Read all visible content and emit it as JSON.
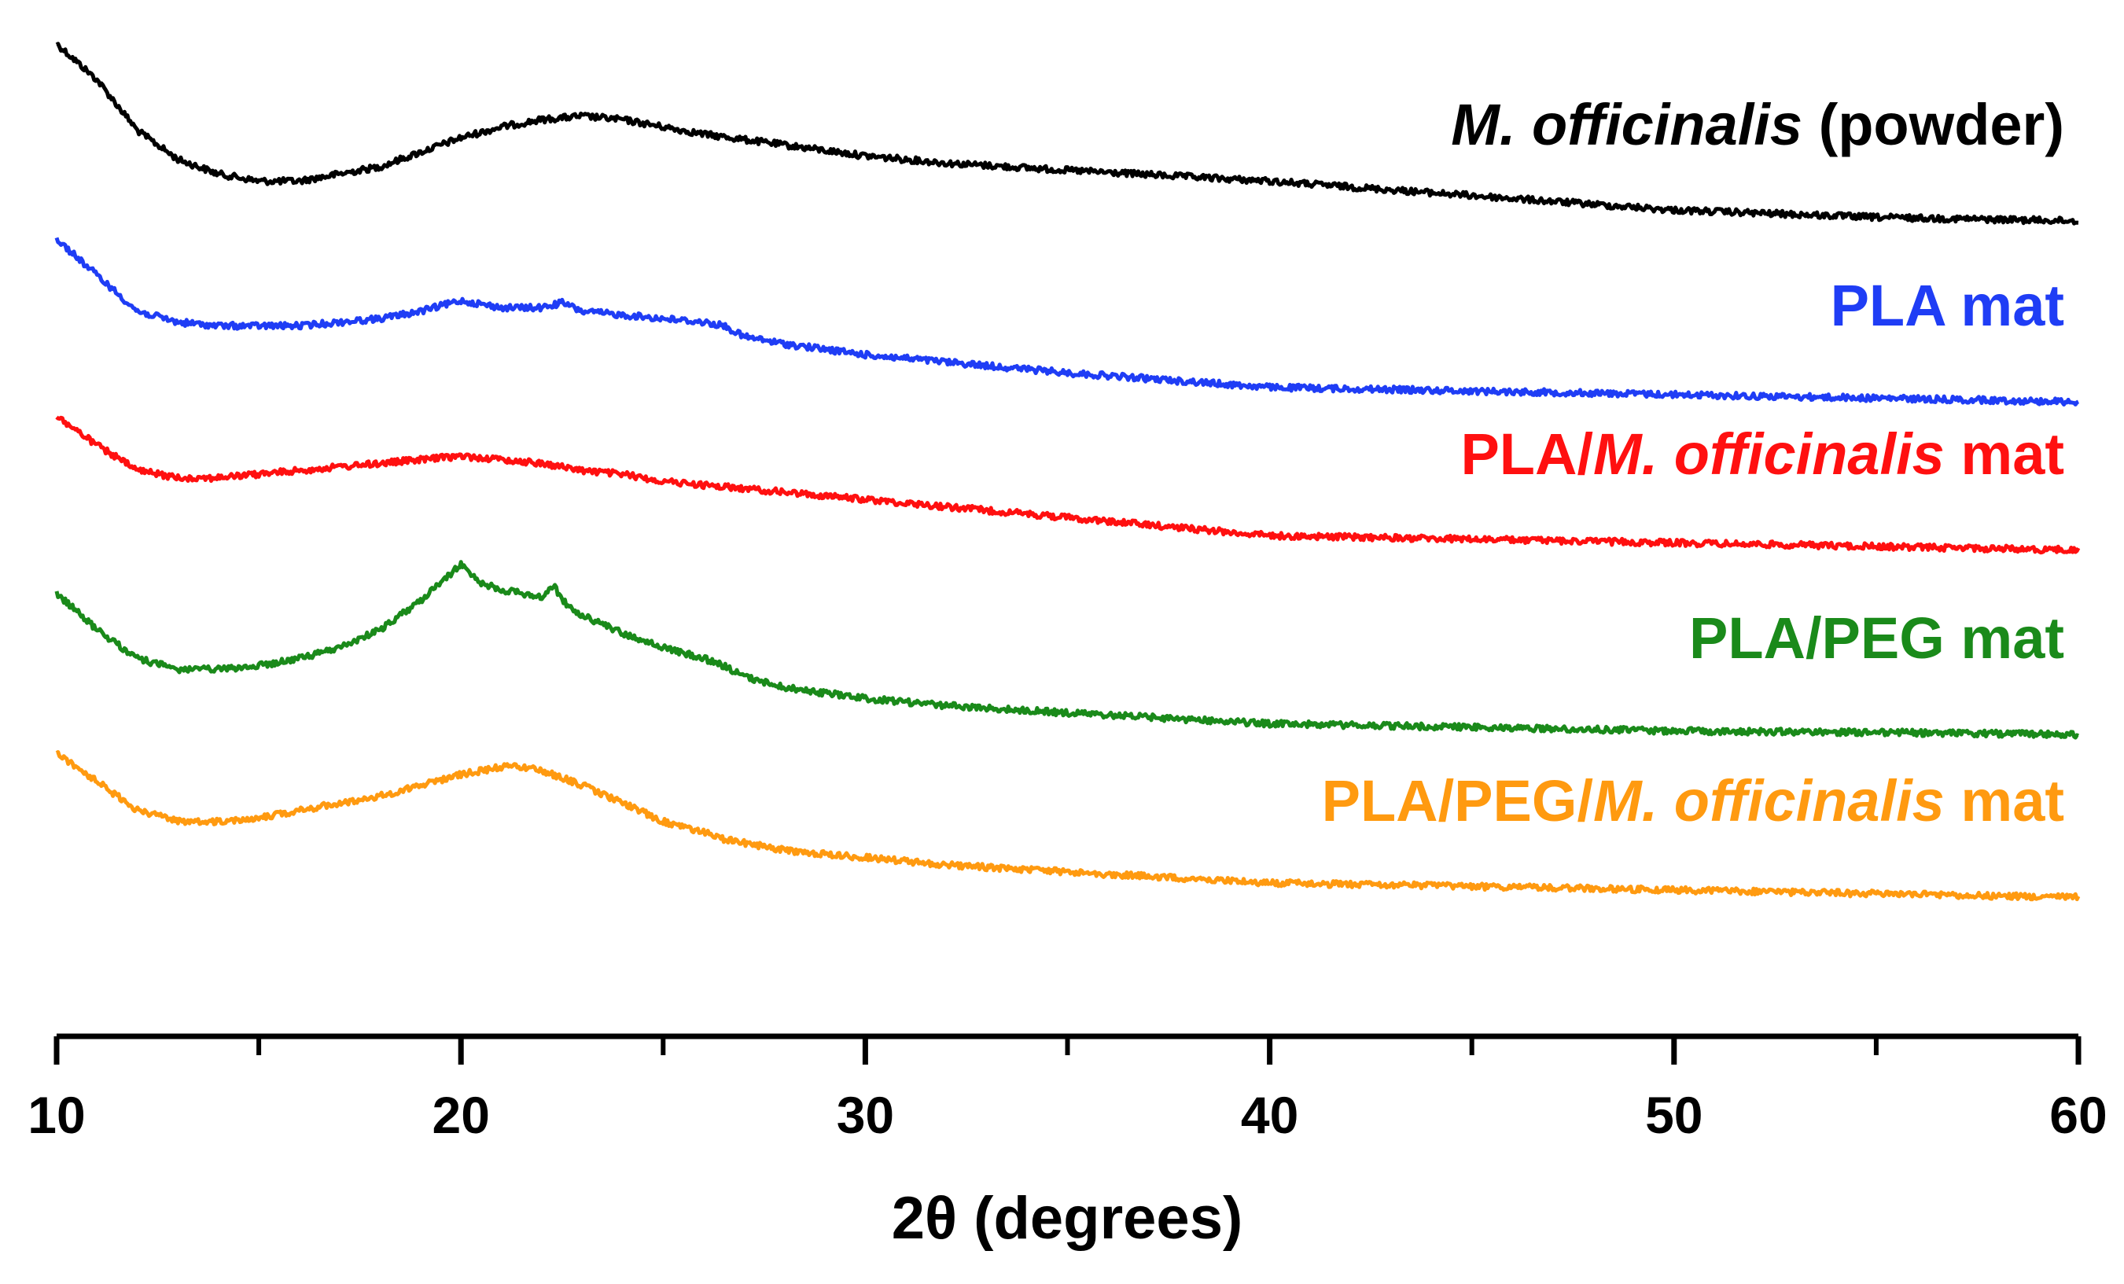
{
  "chart_data": {
    "type": "line",
    "title": "",
    "xlabel": "2θ (degrees)",
    "ylabel": "",
    "xlim": [
      10,
      60
    ],
    "xticks": [
      10,
      20,
      30,
      40,
      50,
      60
    ],
    "yaxis_shown": false,
    "grid": false,
    "series": [
      {
        "name": "M. officinalis (powder)",
        "label_parts": [
          {
            "text": "M. officinalis",
            "italic": true
          },
          {
            "text": " (powder)",
            "italic": false
          }
        ],
        "color": "#000000",
        "x": [
          10,
          11,
          12,
          13,
          14,
          15,
          16,
          17,
          18,
          19,
          20,
          21,
          22,
          23,
          24,
          25,
          26,
          28,
          30,
          32,
          35,
          40,
          45,
          50,
          55,
          60
        ],
        "values": [
          0.97,
          0.92,
          0.85,
          0.81,
          0.79,
          0.78,
          0.78,
          0.79,
          0.8,
          0.82,
          0.84,
          0.855,
          0.865,
          0.87,
          0.865,
          0.855,
          0.845,
          0.83,
          0.815,
          0.805,
          0.795,
          0.78,
          0.76,
          0.74,
          0.73,
          0.725
        ]
      },
      {
        "name": "PLA mat",
        "label_parts": [
          {
            "text": "PLA mat",
            "italic": false
          }
        ],
        "color": "#1f3df5",
        "x": [
          10,
          11,
          12,
          13,
          14,
          15,
          16,
          17,
          18,
          19,
          20,
          21,
          22,
          22.5,
          23,
          24,
          25,
          26,
          26.5,
          27,
          28,
          30,
          35,
          40,
          45,
          50,
          55,
          60
        ],
        "values": [
          0.7,
          0.65,
          0.6,
          0.585,
          0.58,
          0.58,
          0.58,
          0.585,
          0.59,
          0.6,
          0.615,
          0.605,
          0.605,
          0.612,
          0.6,
          0.595,
          0.59,
          0.585,
          0.58,
          0.565,
          0.555,
          0.54,
          0.515,
          0.495,
          0.49,
          0.485,
          0.48,
          0.475
        ]
      },
      {
        "name": "PLA/M. officinalis mat",
        "label_parts": [
          {
            "text": "PLA/",
            "italic": false
          },
          {
            "text": "M. officinalis",
            "italic": true
          },
          {
            "text": " mat",
            "italic": false
          }
        ],
        "color": "#ff1010",
        "x": [
          10,
          11,
          12,
          13,
          14,
          15,
          16,
          17,
          18,
          19,
          20,
          21,
          22,
          23,
          24,
          25,
          26,
          28,
          30,
          32,
          35,
          38,
          40,
          45,
          50,
          55,
          60
        ],
        "values": [
          0.455,
          0.415,
          0.38,
          0.37,
          0.37,
          0.375,
          0.38,
          0.385,
          0.39,
          0.395,
          0.4,
          0.395,
          0.39,
          0.38,
          0.375,
          0.365,
          0.36,
          0.35,
          0.34,
          0.33,
          0.315,
          0.3,
          0.29,
          0.285,
          0.28,
          0.275,
          0.27
        ]
      },
      {
        "name": "PLA/PEG mat",
        "label_parts": [
          {
            "text": "PLA/PEG mat",
            "italic": false
          }
        ],
        "color": "#1a8a1a",
        "x": [
          10,
          11,
          12,
          13,
          14,
          15,
          16,
          17,
          18,
          19,
          19.5,
          20,
          20.5,
          21,
          22,
          22.3,
          22.6,
          23,
          24,
          25,
          26,
          26.5,
          27,
          28,
          30,
          32,
          35,
          40,
          45,
          50,
          55,
          60
        ],
        "values": [
          0.21,
          0.16,
          0.12,
          0.105,
          0.105,
          0.11,
          0.12,
          0.135,
          0.16,
          0.2,
          0.225,
          0.25,
          0.225,
          0.215,
          0.205,
          0.22,
          0.195,
          0.18,
          0.155,
          0.135,
          0.12,
          0.11,
          0.095,
          0.08,
          0.065,
          0.055,
          0.045,
          0.03,
          0.025,
          0.02,
          0.018,
          0.015
        ]
      },
      {
        "name": "PLA/PEG/M. officinalis mat",
        "label_parts": [
          {
            "text": "PLA/PEG/",
            "italic": false
          },
          {
            "text": "M. officinalis",
            "italic": true
          },
          {
            "text": " mat",
            "italic": false
          }
        ],
        "color": "#ff9a10",
        "x": [
          10,
          11,
          12,
          13,
          14,
          15,
          16,
          17,
          18,
          19,
          20,
          21,
          21.5,
          22,
          23,
          24,
          25,
          26,
          26.5,
          27,
          28,
          30,
          32,
          35,
          40,
          45,
          50,
          55,
          60
        ],
        "values": [
          -0.01,
          -0.05,
          -0.09,
          -0.105,
          -0.105,
          -0.1,
          -0.09,
          -0.08,
          -0.07,
          -0.055,
          -0.04,
          -0.03,
          -0.03,
          -0.035,
          -0.055,
          -0.08,
          -0.105,
          -0.12,
          -0.13,
          -0.135,
          -0.145,
          -0.155,
          -0.165,
          -0.175,
          -0.19,
          -0.195,
          -0.2,
          -0.205,
          -0.21
        ]
      }
    ]
  }
}
